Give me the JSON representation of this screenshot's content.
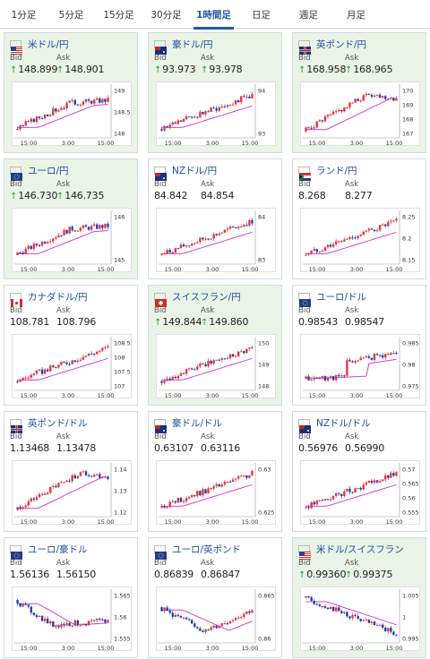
{
  "tabs": [
    {
      "label": "1分足",
      "active": false
    },
    {
      "label": "5分足",
      "active": false
    },
    {
      "label": "15分足",
      "active": false
    },
    {
      "label": "30分足",
      "active": false
    },
    {
      "label": "1時間足",
      "active": true
    },
    {
      "label": "日足",
      "active": false
    },
    {
      "label": "週足",
      "active": false
    },
    {
      "label": "月足",
      "active": false
    }
  ],
  "labels": {
    "bid": "Bid",
    "ask": "Ask"
  },
  "colors": {
    "accent": "#1e5aa8",
    "up_arrow": "#2e9b3a",
    "candle_up": "#e8353d",
    "candle_down": "#2440b0",
    "ma_line": "#d040d8",
    "highlight_bg": "#e9f4e6"
  },
  "cards": [
    {
      "pair": "米ドル/円",
      "flag": "us-flag",
      "highlight": true,
      "bid": "148.899",
      "ask": "148.901",
      "bid_up": true,
      "ask_up": true,
      "y_ticks": [
        "149",
        "148.5",
        "148"
      ],
      "x_ticks": [
        "15:00",
        "3:00",
        "15:00"
      ],
      "trend": "up-flat"
    },
    {
      "pair": "豪ドル/円",
      "flag": "au-flag",
      "highlight": true,
      "bid": "93.973",
      "ask": "93.978",
      "bid_up": true,
      "ask_up": true,
      "y_ticks": [
        "94",
        "93"
      ],
      "x_ticks": [
        "15:00",
        "3:00",
        "15:00"
      ],
      "trend": "up"
    },
    {
      "pair": "英ポンド/円",
      "flag": "gb-flag",
      "highlight": true,
      "bid": "168.958",
      "ask": "168.965",
      "bid_up": true,
      "ask_up": true,
      "y_ticks": [
        "170",
        "169",
        "168",
        "167"
      ],
      "x_ticks": [
        "15:00",
        "3:00",
        "15:00"
      ],
      "trend": "up-peak"
    },
    {
      "pair": "ユーロ/円",
      "flag": "eu-flag",
      "highlight": true,
      "bid": "146.730",
      "ask": "146.735",
      "bid_up": true,
      "ask_up": true,
      "y_ticks": [
        "146",
        "145"
      ],
      "x_ticks": [
        "15:00",
        "3:00",
        "15:00"
      ],
      "trend": "up-flat"
    },
    {
      "pair": "NZドル/円",
      "flag": "nz-flag",
      "highlight": false,
      "bid": "84.842",
      "ask": "84.854",
      "bid_up": false,
      "ask_up": false,
      "y_ticks": [
        "84",
        "83"
      ],
      "x_ticks": [
        "15:00",
        "3:00",
        "15:00"
      ],
      "trend": "up"
    },
    {
      "pair": "ランド/円",
      "flag": "za-flag",
      "highlight": false,
      "bid": "8.268",
      "ask": "8.277",
      "bid_up": false,
      "ask_up": false,
      "y_ticks": [
        "8.25",
        "8.2",
        "8.15"
      ],
      "x_ticks": [
        "15:00",
        "3:00",
        "15:00"
      ],
      "trend": "up"
    },
    {
      "pair": "カナダドル/円",
      "flag": "ca-flag",
      "highlight": false,
      "bid": "108.781",
      "ask": "108.796",
      "bid_up": false,
      "ask_up": false,
      "y_ticks": [
        "108.5",
        "108",
        "107.5",
        "107"
      ],
      "x_ticks": [
        "15:00",
        "3:00",
        "15:00"
      ],
      "trend": "up"
    },
    {
      "pair": "スイスフラン/円",
      "flag": "ch-flag",
      "highlight": true,
      "bid": "149.844",
      "ask": "149.860",
      "bid_up": true,
      "ask_up": true,
      "y_ticks": [
        "150",
        "149",
        "148"
      ],
      "x_ticks": [
        "15:00",
        "3:00",
        "15:00"
      ],
      "trend": "up"
    },
    {
      "pair": "ユーロ/ドル",
      "flag": "eu-flag",
      "highlight": false,
      "bid": "0.98543",
      "ask": "0.98547",
      "bid_up": false,
      "ask_up": false,
      "y_ticks": [
        "0.985",
        "0.98",
        "0.975"
      ],
      "x_ticks": [
        "15:00",
        "3:00",
        "15:00"
      ],
      "trend": "up-step"
    },
    {
      "pair": "英ポンド/ドル",
      "flag": "gb-flag",
      "highlight": false,
      "bid": "1.13468",
      "ask": "1.13478",
      "bid_up": false,
      "ask_up": false,
      "y_ticks": [
        "1.14",
        "1.13",
        "1.12"
      ],
      "x_ticks": [
        "15:00",
        "3:00",
        "15:00"
      ],
      "trend": "up-peak"
    },
    {
      "pair": "豪ドル/ドル",
      "flag": "au-flag",
      "highlight": false,
      "bid": "0.63107",
      "ask": "0.63116",
      "bid_up": false,
      "ask_up": false,
      "y_ticks": [
        "0.63",
        "0.625"
      ],
      "x_ticks": [
        "15:00",
        "3:00",
        "15:00"
      ],
      "trend": "up"
    },
    {
      "pair": "NZドル/ドル",
      "flag": "nz-flag",
      "highlight": false,
      "bid": "0.56976",
      "ask": "0.56990",
      "bid_up": false,
      "ask_up": false,
      "y_ticks": [
        "0.57",
        "0.565",
        "0.56",
        "0.555"
      ],
      "x_ticks": [
        "15:00",
        "3:00",
        "15:00"
      ],
      "trend": "up"
    },
    {
      "pair": "ユーロ/豪ドル",
      "flag": "eu-flag",
      "highlight": false,
      "bid": "1.56136",
      "ask": "1.56150",
      "bid_up": false,
      "ask_up": false,
      "y_ticks": [
        "1.565",
        "1.56",
        "1.555"
      ],
      "x_ticks": [
        "15:00",
        "3:00",
        "15:00"
      ],
      "trend": "down-flat"
    },
    {
      "pair": "ユーロ/英ポンド",
      "flag": "eu-flag",
      "highlight": false,
      "bid": "0.86839",
      "ask": "0.86847",
      "bid_up": false,
      "ask_up": false,
      "y_ticks": [
        "0.865",
        "0.86"
      ],
      "x_ticks": [
        "15:00",
        "3:00",
        "15:00"
      ],
      "trend": "dip"
    },
    {
      "pair": "米ドル/スイスフラン",
      "flag": "us-flag",
      "highlight": true,
      "bid": "0.99360",
      "ask": "0.99375",
      "bid_up": true,
      "ask_up": true,
      "y_ticks": [
        "1.005",
        "1",
        "0.995"
      ],
      "x_ticks": [
        "15:00",
        "3:00",
        "15:00"
      ],
      "trend": "down"
    }
  ]
}
